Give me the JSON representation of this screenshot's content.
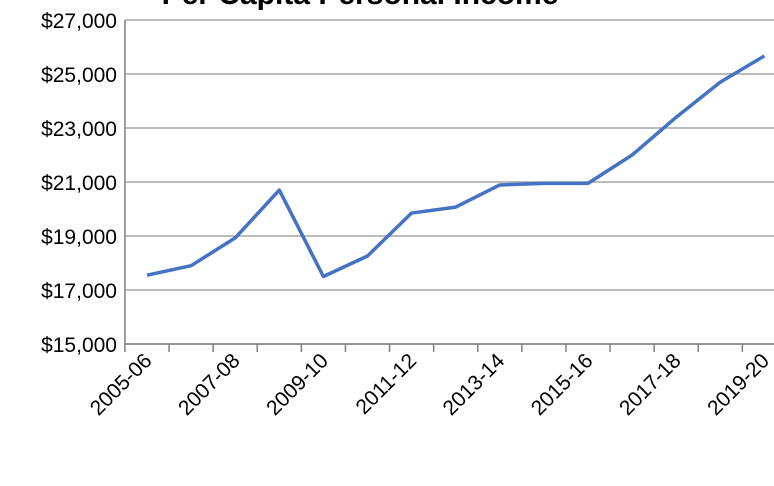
{
  "chart_data": {
    "type": "line",
    "title": "Per Capita Personal Income",
    "categories": [
      "2005-06",
      null,
      "2007-08",
      null,
      "2009-10",
      null,
      "2011-12",
      null,
      "2013-14",
      null,
      "2015-16",
      null,
      "2017-18",
      null,
      "2019-20"
    ],
    "series": [
      {
        "name": "Per Capita Personal Income",
        "color": "#4472c4",
        "values": [
          17550,
          17900,
          18930,
          20700,
          17500,
          18260,
          19850,
          20070,
          20890,
          20950,
          20950,
          22000,
          23400,
          24700,
          25670
        ]
      }
    ],
    "ylim": [
      15000,
      27000
    ],
    "yticks": [
      {
        "value": 15000,
        "label": "$15,000"
      },
      {
        "value": 17000,
        "label": "$17,000"
      },
      {
        "value": 19000,
        "label": "$19,000"
      },
      {
        "value": 21000,
        "label": "$21,000"
      },
      {
        "value": 23000,
        "label": "$23,000"
      },
      {
        "value": 25000,
        "label": "$25,000"
      },
      {
        "value": 27000,
        "label": "$27,000"
      }
    ],
    "grid": true
  }
}
